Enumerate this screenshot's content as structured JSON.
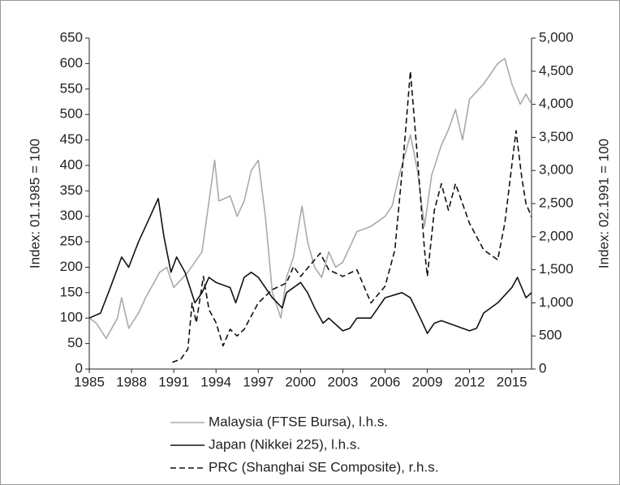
{
  "chart_data": {
    "type": "line",
    "y_label": "Index: 01.1985 = 100",
    "y2_label": "Index: 02.1991 = 100",
    "xlim": [
      1985,
      2016.4
    ],
    "xticks": [
      1985,
      1988,
      1991,
      1994,
      1997,
      2000,
      2003,
      2006,
      2009,
      2012,
      2015
    ],
    "ylim": [
      0,
      650
    ],
    "yticks": [
      0,
      50,
      100,
      150,
      200,
      250,
      300,
      350,
      400,
      450,
      500,
      550,
      600,
      650
    ],
    "y2lim": [
      0,
      5000
    ],
    "y2ticks": [
      0,
      500,
      {
        "value": 1000,
        "label": "1,000"
      },
      {
        "value": 1500,
        "label": "1,500"
      },
      {
        "value": 2000,
        "label": "2,000"
      },
      {
        "value": 2500,
        "label": "2,500"
      },
      {
        "value": 3000,
        "label": "3,000"
      },
      {
        "value": 3500,
        "label": "3,500"
      },
      {
        "value": 4000,
        "label": "4,000"
      },
      {
        "value": 4500,
        "label": "4,500"
      },
      {
        "value": 5000,
        "label": "5,000"
      }
    ],
    "series": [
      {
        "name": "Malaysia (FTSE Bursa), l.h.s.",
        "color": "#aaaaaa",
        "dashed": false,
        "axis": "y",
        "x": [
          1985,
          1985.5,
          1986.2,
          1987,
          1987.3,
          1987.8,
          1988.5,
          1989,
          1990,
          1990.5,
          1991,
          1992,
          1993,
          1993.9,
          1994.2,
          1995,
          1995.5,
          1996,
          1996.5,
          1997,
          1997.5,
          1998,
          1998.6,
          1999,
          1999.5,
          2000.1,
          2000.5,
          2001,
          2001.5,
          2002,
          2002.5,
          2003,
          2003.5,
          2004,
          2005,
          2006,
          2006.5,
          2007,
          2007.8,
          2008.3,
          2008.8,
          2009.3,
          2010,
          2010.5,
          2011,
          2011.5,
          2012,
          2013,
          2014,
          2014.5,
          2015,
          2015.6,
          2016,
          2016.4
        ],
        "values": [
          100,
          90,
          60,
          100,
          140,
          80,
          110,
          140,
          190,
          200,
          160,
          190,
          230,
          410,
          330,
          340,
          300,
          330,
          390,
          410,
          300,
          150,
          100,
          180,
          220,
          320,
          250,
          200,
          180,
          230,
          200,
          210,
          240,
          270,
          280,
          300,
          320,
          380,
          460,
          390,
          280,
          380,
          440,
          470,
          510,
          450,
          530,
          560,
          600,
          610,
          560,
          520,
          540,
          520
        ]
      },
      {
        "name": "Japan (Nikkei 225), l.h.s.",
        "color": "#111111",
        "dashed": false,
        "axis": "y",
        "x": [
          1985,
          1985.8,
          1986.5,
          1987.3,
          1987.8,
          1988.5,
          1989,
          1989.9,
          1990.3,
          1990.8,
          1991.2,
          1991.8,
          1992.5,
          1993,
          1993.5,
          1994,
          1995,
          1995.4,
          1996,
          1996.5,
          1997,
          1997.5,
          1998,
          1998.7,
          1999,
          2000,
          2000.5,
          2001,
          2001.6,
          2002,
          2003,
          2003.5,
          2004,
          2005,
          2006,
          2007.2,
          2007.8,
          2008.5,
          2009,
          2009.5,
          2010,
          2011,
          2012,
          2012.5,
          2013,
          2014,
          2015,
          2015.4,
          2016,
          2016.4
        ],
        "values": [
          100,
          110,
          160,
          220,
          200,
          250,
          280,
          335,
          260,
          190,
          220,
          190,
          130,
          150,
          180,
          170,
          160,
          130,
          180,
          190,
          180,
          160,
          140,
          120,
          150,
          170,
          150,
          120,
          90,
          100,
          75,
          80,
          100,
          100,
          140,
          150,
          140,
          100,
          70,
          90,
          95,
          85,
          75,
          80,
          110,
          130,
          160,
          180,
          140,
          150
        ]
      },
      {
        "name": "PRC (Shanghai SE Composite), r.h.s.",
        "color": "#111111",
        "dashed": true,
        "axis": "y2",
        "x": [
          1990.9,
          1991.5,
          1992,
          1992.3,
          1992.6,
          1993.1,
          1993.5,
          1994,
          1994.5,
          1995,
          1995.5,
          1996,
          1997,
          1997.5,
          1998,
          1999,
          1999.5,
          2000,
          2001.4,
          2002,
          2003,
          2004,
          2005,
          2006,
          2006.7,
          2007.3,
          2007.8,
          2008.3,
          2008.8,
          2009,
          2009.5,
          2010,
          2010.5,
          2011,
          2012,
          2013,
          2014,
          2014.5,
          2015.3,
          2015.7,
          2016,
          2016.4
        ],
        "values": [
          100,
          150,
          300,
          1000,
          700,
          1400,
          900,
          700,
          350,
          600,
          500,
          600,
          1000,
          1100,
          1200,
          1300,
          1550,
          1400,
          1750,
          1500,
          1400,
          1500,
          1000,
          1250,
          1800,
          3200,
          4500,
          3200,
          1800,
          1400,
          2400,
          2800,
          2400,
          2800,
          2200,
          1800,
          1650,
          2200,
          3600,
          2900,
          2500,
          2300
        ]
      }
    ]
  }
}
